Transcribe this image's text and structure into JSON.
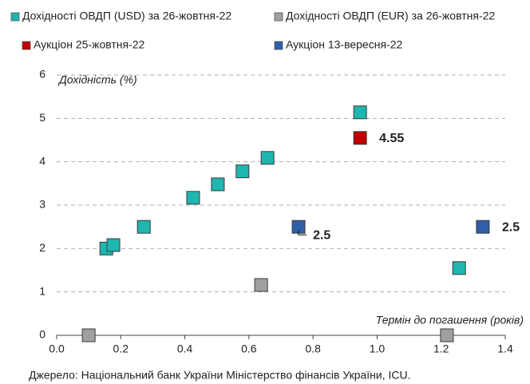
{
  "chart_data": {
    "type": "scatter",
    "x_label": "Термін до погашення (років)",
    "y_label": "Дохідність (%)",
    "source": "Джерело: Національний банк України Міністерство фінансів України, ICU.",
    "xlim": [
      0,
      1.4
    ],
    "xticks": [
      {
        "value": 0,
        "label": "0.0"
      },
      0.2,
      0.4,
      0.6,
      0.8,
      {
        "value": 1,
        "label": "1.0"
      },
      1.2,
      1.4
    ],
    "ylim": [
      0,
      6
    ],
    "yticks": [
      0,
      1,
      2,
      3,
      4,
      5,
      6
    ],
    "grid": true,
    "series": [
      {
        "name": "Дохідності ОВДП (USD) за 26-жовтня-22",
        "color": "#1fb5b0",
        "x": [
          0.155,
          0.177,
          0.272,
          0.426,
          0.503,
          0.58,
          0.658,
          0.947,
          1.256
        ],
        "values": [
          2.0,
          2.08,
          2.5,
          3.17,
          3.48,
          3.78,
          4.09,
          5.14,
          1.55
        ]
      },
      {
        "name": "Дохідності ОВДП (EUR) за 26-жовтня-22",
        "color": "#a0a0a0",
        "x": [
          0.1,
          0.638,
          1.218
        ],
        "values": [
          0,
          1.16,
          0
        ]
      },
      {
        "name": "Аукціон 25-жовтня-22",
        "color": "#c00000",
        "data_labels": true,
        "x": [
          0.947
        ],
        "values": [
          4.55
        ]
      },
      {
        "name": "Аукціон 13-вересня-22",
        "color": "#2e5fa8",
        "data_labels": true,
        "x": [
          0.755,
          1.33
        ],
        "values": [
          2.5,
          2.5
        ]
      }
    ]
  }
}
